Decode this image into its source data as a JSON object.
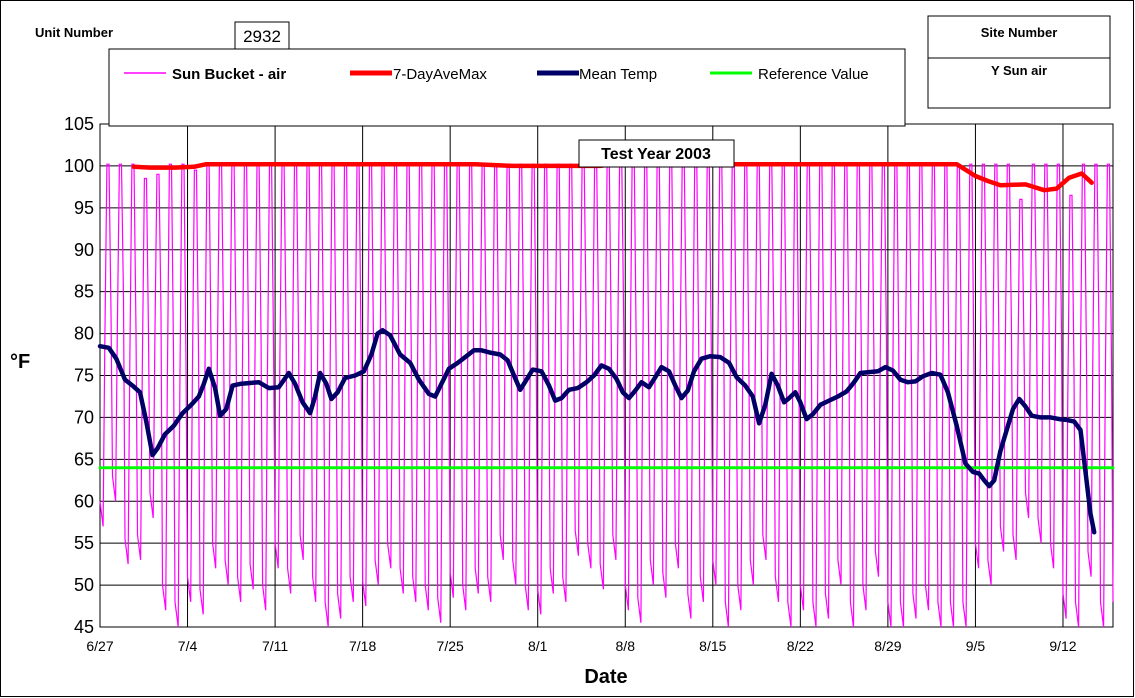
{
  "chart_data": {
    "type": "line",
    "title": "",
    "xlabel": "Date",
    "ylabel": "°F",
    "ylim": [
      45,
      105
    ],
    "yticks": [
      45,
      50,
      55,
      60,
      65,
      70,
      75,
      80,
      85,
      90,
      95,
      100,
      105
    ],
    "x_start": "6/27",
    "xlim_days": [
      0,
      81
    ],
    "x_tick_labels": [
      "6/27",
      "7/4",
      "7/11",
      "7/18",
      "7/25",
      "8/1",
      "8/8",
      "8/15",
      "8/22",
      "8/29",
      "9/5",
      "9/12"
    ],
    "grid": true,
    "legend_position": "top",
    "annotation": "Test Year 2003",
    "unit_number_label": "Unit Number",
    "unit_number_value": "2932",
    "site_number_label": "Site Number",
    "site_number_value": "Y Sun air",
    "series": [
      {
        "name": "Sun Bucket - air",
        "color": "#ff00ff",
        "kind": "daily-oscillation",
        "daily_max": [
          100.2,
          100.2,
          100.2,
          98.5,
          99.0,
          100.2,
          100.2,
          99.5,
          100.2,
          100.2,
          100.2,
          100.2,
          100.2,
          100.2,
          100.2,
          100.2,
          100.2,
          100.2,
          100.2,
          100.2,
          100.2,
          100.2,
          100.2,
          100.2,
          100.2,
          100.2,
          100.2,
          100.2,
          100.2,
          100.2,
          100.2,
          100.2,
          100.2,
          100.2,
          100.2,
          100.2,
          100.2,
          100.2,
          100.2,
          100.2,
          100.2,
          100.2,
          100.2,
          100.2,
          100.2,
          100.2,
          100.2,
          100.2,
          100.2,
          100.2,
          100.2,
          100.2,
          100.2,
          100.2,
          100.2,
          100.2,
          100.2,
          100.2,
          100.2,
          100.2,
          100.2,
          100.2,
          100.2,
          100.2,
          100.2,
          100.2,
          100.2,
          100.2,
          100.2,
          100.2,
          100.2,
          100.2,
          100.2,
          96.0,
          100.2,
          100.2,
          100.2,
          96.5,
          100.2,
          100.2,
          100.2,
          89.0
        ],
        "daily_min": [
          57,
          60,
          52.5,
          53,
          58,
          47,
          45,
          48,
          46.5,
          52,
          50,
          48,
          49.5,
          47,
          52,
          49,
          53,
          48,
          45,
          46,
          48,
          47.5,
          50,
          52,
          49,
          48,
          47,
          45.5,
          48.5,
          47,
          49,
          48,
          53,
          50,
          47,
          46.5,
          49,
          48,
          53.5,
          52,
          49.5,
          53,
          47,
          45.5,
          50,
          48.5,
          52,
          46,
          48,
          50,
          45,
          47,
          50,
          53,
          48,
          45,
          47,
          45,
          46,
          50,
          45,
          47,
          51,
          45,
          45,
          46,
          47,
          45,
          45,
          45,
          52,
          50,
          54,
          53,
          58,
          55,
          52,
          46,
          45,
          51,
          45,
          45
        ]
      },
      {
        "name": "7-DayAveMax",
        "color": "#ff0000",
        "points": [
          [
            2.7,
            99.9
          ],
          [
            4,
            99.8
          ],
          [
            6,
            99.8
          ],
          [
            7.5,
            99.9
          ],
          [
            8.5,
            100.2
          ],
          [
            20,
            100.2
          ],
          [
            30,
            100.2
          ],
          [
            33,
            100.0
          ],
          [
            40,
            100.0
          ],
          [
            41,
            100.2
          ],
          [
            66,
            100.2
          ],
          [
            68.5,
            100.2
          ],
          [
            70,
            98.8
          ],
          [
            71,
            98.2
          ],
          [
            72,
            97.7
          ],
          [
            74,
            97.8
          ],
          [
            75.5,
            97.1
          ],
          [
            76.5,
            97.3
          ],
          [
            77.5,
            98.6
          ],
          [
            78.5,
            99.1
          ],
          [
            79.3,
            98.0
          ]
        ]
      },
      {
        "name": "Mean Temp",
        "color": "#000066",
        "points": [
          [
            0,
            78.5
          ],
          [
            0.7,
            78.3
          ],
          [
            1.3,
            77.0
          ],
          [
            2,
            74.5
          ],
          [
            2.6,
            73.8
          ],
          [
            3.2,
            73.0
          ],
          [
            3.7,
            69.5
          ],
          [
            4.2,
            65.5
          ],
          [
            4.6,
            66.3
          ],
          [
            5.2,
            68.0
          ],
          [
            5.9,
            69.0
          ],
          [
            6.6,
            70.5
          ],
          [
            7.3,
            71.5
          ],
          [
            7.9,
            72.5
          ],
          [
            8.3,
            74.0
          ],
          [
            8.7,
            75.8
          ],
          [
            9.2,
            73.5
          ],
          [
            9.6,
            70.2
          ],
          [
            10.1,
            71.0
          ],
          [
            10.6,
            73.8
          ],
          [
            11.2,
            74.0
          ],
          [
            12,
            74.1
          ],
          [
            12.7,
            74.2
          ],
          [
            13.5,
            73.5
          ],
          [
            14.3,
            73.6
          ],
          [
            15.1,
            75.3
          ],
          [
            15.6,
            74.0
          ],
          [
            16.2,
            71.8
          ],
          [
            16.8,
            70.5
          ],
          [
            17.2,
            72.5
          ],
          [
            17.6,
            75.3
          ],
          [
            18.1,
            74.0
          ],
          [
            18.5,
            72.2
          ],
          [
            19,
            73.0
          ],
          [
            19.6,
            74.7
          ],
          [
            20.4,
            75.0
          ],
          [
            21.1,
            75.5
          ],
          [
            21.7,
            77.5
          ],
          [
            22.2,
            80.0
          ],
          [
            22.6,
            80.4
          ],
          [
            23.2,
            79.8
          ],
          [
            24,
            77.5
          ],
          [
            24.8,
            76.5
          ],
          [
            25.5,
            74.5
          ],
          [
            26.3,
            72.8
          ],
          [
            26.8,
            72.5
          ],
          [
            27.3,
            74.0
          ],
          [
            27.9,
            75.8
          ],
          [
            28.6,
            76.5
          ],
          [
            29.3,
            77.3
          ],
          [
            29.9,
            78.0
          ],
          [
            30.5,
            78.0
          ],
          [
            31.3,
            77.7
          ],
          [
            32,
            77.5
          ],
          [
            32.6,
            76.8
          ],
          [
            33.1,
            75.0
          ],
          [
            33.6,
            73.3
          ],
          [
            34.1,
            74.5
          ],
          [
            34.6,
            75.7
          ],
          [
            35.3,
            75.5
          ],
          [
            35.9,
            73.8
          ],
          [
            36.4,
            72.0
          ],
          [
            36.9,
            72.3
          ],
          [
            37.5,
            73.3
          ],
          [
            38.2,
            73.5
          ],
          [
            38.9,
            74.2
          ],
          [
            39.5,
            75.0
          ],
          [
            40.1,
            76.2
          ],
          [
            40.7,
            75.8
          ],
          [
            41.3,
            74.6
          ],
          [
            41.8,
            73.0
          ],
          [
            42.3,
            72.3
          ],
          [
            42.8,
            73.2
          ],
          [
            43.3,
            74.2
          ],
          [
            43.9,
            73.6
          ],
          [
            44.4,
            74.8
          ],
          [
            44.9,
            76.0
          ],
          [
            45.5,
            75.5
          ],
          [
            46,
            73.8
          ],
          [
            46.5,
            72.3
          ],
          [
            47,
            73.2
          ],
          [
            47.5,
            75.5
          ],
          [
            48.1,
            77.0
          ],
          [
            48.8,
            77.3
          ],
          [
            49.6,
            77.2
          ],
          [
            50.3,
            76.5
          ],
          [
            50.9,
            74.8
          ],
          [
            51.6,
            73.8
          ],
          [
            52.2,
            72.5
          ],
          [
            52.7,
            69.3
          ],
          [
            53.2,
            71.5
          ],
          [
            53.7,
            75.2
          ],
          [
            54.2,
            73.8
          ],
          [
            54.7,
            71.8
          ],
          [
            55.1,
            72.3
          ],
          [
            55.6,
            73.0
          ],
          [
            56,
            71.8
          ],
          [
            56.5,
            69.8
          ],
          [
            57,
            70.4
          ],
          [
            57.6,
            71.5
          ],
          [
            58.3,
            72.0
          ],
          [
            59,
            72.5
          ],
          [
            59.7,
            73.1
          ],
          [
            60.3,
            74.2
          ],
          [
            60.8,
            75.3
          ],
          [
            61.5,
            75.4
          ],
          [
            62.2,
            75.5
          ],
          [
            62.8,
            76.0
          ],
          [
            63.4,
            75.6
          ],
          [
            64,
            74.5
          ],
          [
            64.6,
            74.2
          ],
          [
            65.2,
            74.3
          ],
          [
            65.8,
            74.9
          ],
          [
            66.5,
            75.3
          ],
          [
            67.2,
            75.1
          ],
          [
            67.8,
            73.0
          ],
          [
            68.5,
            69.0
          ],
          [
            69.2,
            64.5
          ],
          [
            69.8,
            63.5
          ],
          [
            70.3,
            63.3
          ],
          [
            70.7,
            62.5
          ],
          [
            71.1,
            61.8
          ],
          [
            71.5,
            62.5
          ],
          [
            72,
            66.0
          ],
          [
            72.5,
            68.5
          ],
          [
            73,
            71.0
          ],
          [
            73.5,
            72.2
          ],
          [
            74,
            71.3
          ],
          [
            74.5,
            70.2
          ],
          [
            75.2,
            70.0
          ],
          [
            76,
            70.0
          ],
          [
            76.7,
            69.8
          ],
          [
            77.3,
            69.7
          ],
          [
            77.9,
            69.5
          ],
          [
            78.4,
            68.5
          ],
          [
            78.8,
            63.5
          ],
          [
            79.2,
            58.5
          ],
          [
            79.5,
            56.3
          ]
        ]
      },
      {
        "name": "Reference Value",
        "color": "#00ff00",
        "points": [
          [
            0,
            64
          ],
          [
            81,
            64
          ]
        ]
      }
    ]
  }
}
